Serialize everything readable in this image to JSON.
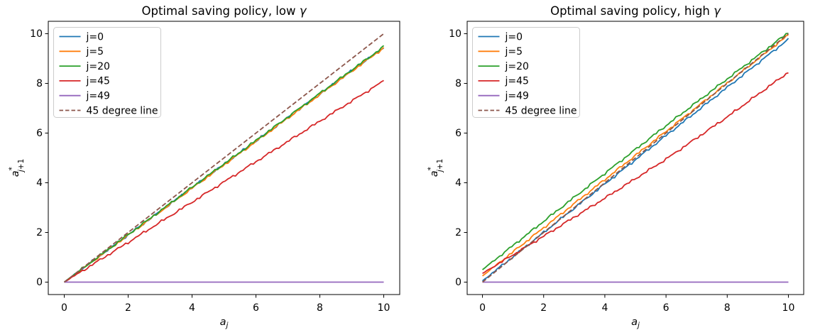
{
  "figure": {
    "background": "#ffffff",
    "axis_color": "#000000",
    "tick_label_color": "#000000",
    "legend_border_color": "#cccccc",
    "legend_background": "#ffffff"
  },
  "chart_data": [
    {
      "type": "line",
      "title": "Optimal saving policy, low γ",
      "xlabel": {
        "base": "a",
        "sub": "j"
      },
      "ylabel": {
        "base": "a",
        "sup": "*",
        "sub": "j+1"
      },
      "xlim": [
        -0.5,
        10.5
      ],
      "ylim": [
        -0.5,
        10.5
      ],
      "xticks": [
        0,
        2,
        4,
        6,
        8,
        10
      ],
      "yticks": [
        0,
        2,
        4,
        6,
        8,
        10
      ],
      "grid": false,
      "legend": {
        "position": "upper left"
      },
      "series": [
        {
          "name": "j=0",
          "color": "#1f77b4",
          "dash": "solid",
          "jitter": true,
          "points": [
            [
              0,
              0
            ],
            [
              2,
              1.9
            ],
            [
              4,
              3.8
            ],
            [
              6,
              5.68
            ],
            [
              8,
              7.57
            ],
            [
              10,
              9.45
            ]
          ]
        },
        {
          "name": "j=5",
          "color": "#ff7f0e",
          "dash": "solid",
          "jitter": true,
          "points": [
            [
              0,
              0
            ],
            [
              2,
              1.89
            ],
            [
              4,
              3.78
            ],
            [
              6,
              5.66
            ],
            [
              8,
              7.55
            ],
            [
              10,
              9.43
            ]
          ]
        },
        {
          "name": "j=20",
          "color": "#2ca02c",
          "dash": "solid",
          "jitter": true,
          "points": [
            [
              0,
              0
            ],
            [
              2,
              1.91
            ],
            [
              4,
              3.82
            ],
            [
              6,
              5.7
            ],
            [
              8,
              7.6
            ],
            [
              10,
              9.48
            ]
          ]
        },
        {
          "name": "j=45",
          "color": "#d62728",
          "dash": "solid",
          "jitter": true,
          "points": [
            [
              0,
              0
            ],
            [
              2,
              1.6
            ],
            [
              4,
              3.22
            ],
            [
              6,
              4.85
            ],
            [
              8,
              6.48
            ],
            [
              10,
              8.1
            ]
          ]
        },
        {
          "name": "j=49",
          "color": "#9467bd",
          "dash": "solid",
          "jitter": false,
          "points": [
            [
              0,
              0
            ],
            [
              10,
              0
            ]
          ]
        },
        {
          "name": "45 degree line",
          "color": "#8c564b",
          "dash": "dashed",
          "jitter": false,
          "points": [
            [
              0,
              0
            ],
            [
              10,
              10
            ]
          ]
        }
      ]
    },
    {
      "type": "line",
      "title": "Optimal saving policy, high γ",
      "xlabel": {
        "base": "a",
        "sub": "j"
      },
      "ylabel": {
        "base": "a",
        "sup": "*",
        "sub": "j+1"
      },
      "xlim": [
        -0.5,
        10.5
      ],
      "ylim": [
        -0.5,
        10.5
      ],
      "xticks": [
        0,
        2,
        4,
        6,
        8,
        10
      ],
      "yticks": [
        0,
        2,
        4,
        6,
        8,
        10
      ],
      "grid": false,
      "legend": {
        "position": "upper left"
      },
      "series": [
        {
          "name": "j=0",
          "color": "#1f77b4",
          "dash": "solid",
          "jitter": true,
          "points": [
            [
              0,
              0.05
            ],
            [
              2,
              2.0
            ],
            [
              4,
              3.95
            ],
            [
              6,
              5.9
            ],
            [
              8,
              7.84
            ],
            [
              10,
              9.78
            ]
          ]
        },
        {
          "name": "j=5",
          "color": "#ff7f0e",
          "dash": "solid",
          "jitter": true,
          "points": [
            [
              0,
              0.25
            ],
            [
              2,
              2.19
            ],
            [
              4,
              4.13
            ],
            [
              6,
              6.07
            ],
            [
              8,
              8.01
            ],
            [
              10,
              9.95
            ]
          ]
        },
        {
          "name": "j=20",
          "color": "#2ca02c",
          "dash": "solid",
          "jitter": true,
          "points": [
            [
              0,
              0.5
            ],
            [
              2,
              2.45
            ],
            [
              4,
              4.38
            ],
            [
              6,
              6.3
            ],
            [
              8,
              8.18
            ],
            [
              10,
              10.05
            ]
          ]
        },
        {
          "name": "j=45",
          "color": "#d62728",
          "dash": "solid",
          "jitter": true,
          "points": [
            [
              0,
              0.35
            ],
            [
              2,
              1.85
            ],
            [
              4,
              3.38
            ],
            [
              6,
              4.95
            ],
            [
              8,
              6.65
            ],
            [
              10,
              8.45
            ]
          ]
        },
        {
          "name": "j=49",
          "color": "#9467bd",
          "dash": "solid",
          "jitter": false,
          "points": [
            [
              0,
              0
            ],
            [
              10,
              0
            ]
          ]
        },
        {
          "name": "45 degree line",
          "color": "#8c564b",
          "dash": "dashed",
          "jitter": false,
          "points": [
            [
              0,
              0
            ],
            [
              10,
              10
            ]
          ]
        }
      ]
    }
  ]
}
